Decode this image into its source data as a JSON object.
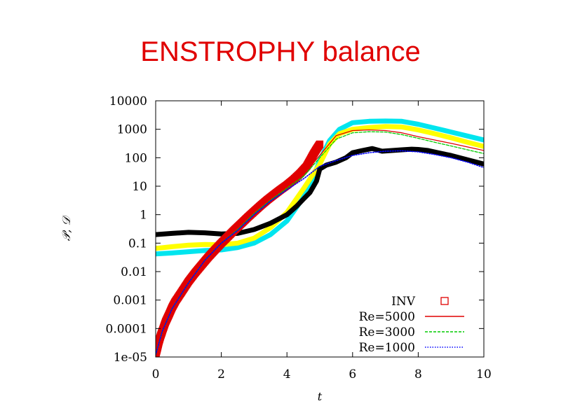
{
  "slide": {
    "title": "ENSTROPHY balance"
  },
  "chart_data": {
    "type": "line",
    "title": "",
    "xlabel": "t",
    "ylabel": "𝒫, 𝒟",
    "xlim": [
      0,
      10
    ],
    "ylim": [
      1e-05,
      10000
    ],
    "yscale": "log",
    "grid": false,
    "legend_position": "bottom-right",
    "x_ticks": [
      0,
      2,
      4,
      6,
      8,
      10
    ],
    "x_tick_labels": [
      "0",
      "2",
      "4",
      "6",
      "8",
      "10"
    ],
    "y_ticks": [
      1e-05,
      0.0001,
      0.001,
      0.01,
      0.1,
      1,
      10,
      100,
      1000,
      10000
    ],
    "y_tick_labels": [
      "1e-05",
      "0.0001",
      "0.001",
      "0.01",
      "0.1",
      "1",
      "10",
      "100",
      "1000",
      "10000"
    ],
    "series": [
      {
        "name": "INV",
        "style": "markers",
        "color": "#e00000",
        "x": [
          0.0,
          0.05,
          0.1,
          0.15,
          0.2,
          0.3,
          0.4,
          0.5,
          0.6,
          0.8,
          1.0,
          1.2,
          1.4,
          1.6,
          1.8,
          2.0,
          2.2,
          2.4,
          2.6,
          2.8,
          3.0,
          3.2,
          3.4,
          3.6,
          3.8,
          4.0,
          4.2,
          4.4,
          4.6,
          4.7,
          4.8,
          4.9,
          5.0
        ],
        "y": [
          1.2e-05,
          2e-05,
          3.5e-05,
          5.5e-05,
          8e-05,
          0.00017,
          0.0003,
          0.00055,
          0.0009,
          0.002,
          0.0045,
          0.009,
          0.017,
          0.032,
          0.057,
          0.1,
          0.17,
          0.29,
          0.48,
          0.8,
          1.3,
          2.1,
          3.3,
          5.0,
          7.5,
          11,
          17,
          28,
          50,
          80,
          130,
          200,
          300
        ]
      },
      {
        "name": "Re=5000",
        "style": "solid",
        "color": "#e00000",
        "x": [
          0.0,
          0.2,
          0.5,
          1.0,
          1.5,
          2.0,
          2.5,
          3.0,
          3.5,
          4.0,
          4.5,
          5.0,
          5.5,
          6.0,
          6.5,
          7.0,
          7.5,
          8.0,
          8.5,
          9.0,
          9.5,
          10.0
        ],
        "y": [
          1.2e-05,
          8e-05,
          0.0005,
          0.004,
          0.025,
          0.1,
          0.32,
          1.2,
          3.5,
          9,
          25,
          120,
          600,
          900,
          950,
          900,
          750,
          550,
          420,
          320,
          240,
          180
        ]
      },
      {
        "name": "Re=3000",
        "style": "dashed",
        "color": "#00cc00",
        "x": [
          0.0,
          0.2,
          0.5,
          1.0,
          1.5,
          2.0,
          2.5,
          3.0,
          3.5,
          4.0,
          4.5,
          5.0,
          5.5,
          6.0,
          6.5,
          7.0,
          7.5,
          8.0,
          8.5,
          9.0,
          9.5,
          10.0
        ],
        "y": [
          1.2e-05,
          8e-05,
          0.0005,
          0.004,
          0.025,
          0.1,
          0.3,
          1.1,
          3.2,
          8.5,
          22,
          100,
          450,
          750,
          820,
          800,
          650,
          480,
          350,
          260,
          190,
          140
        ]
      },
      {
        "name": "Re=1000",
        "style": "dotted",
        "color": "#0000ff",
        "x": [
          0.0,
          0.2,
          0.5,
          1.0,
          1.5,
          2.0,
          2.5,
          3.0,
          3.5,
          4.0,
          4.5,
          5.0,
          5.5,
          6.0,
          6.5,
          7.0,
          7.5,
          8.0,
          8.5,
          9.0,
          9.5,
          10.0
        ],
        "y": [
          1.2e-05,
          8e-05,
          0.0005,
          0.004,
          0.025,
          0.1,
          0.28,
          1.0,
          3.0,
          7.5,
          18,
          50,
          80,
          120,
          150,
          170,
          175,
          160,
          130,
          100,
          70,
          45
        ]
      },
      {
        "style": "thick",
        "color": "#00e5ee",
        "x": [
          0.0,
          0.5,
          1.0,
          1.5,
          2.0,
          2.5,
          3.0,
          3.5,
          4.0,
          4.5,
          4.8,
          5.0,
          5.3,
          5.6,
          6.0,
          6.5,
          7.0,
          7.5,
          8.0,
          8.5,
          9.0,
          9.5,
          10.0
        ],
        "y": [
          0.042,
          0.045,
          0.05,
          0.055,
          0.058,
          0.07,
          0.1,
          0.2,
          0.6,
          4,
          20,
          80,
          400,
          1000,
          1700,
          1900,
          1950,
          1900,
          1500,
          1100,
          800,
          580,
          420
        ]
      },
      {
        "style": "thick",
        "color": "#ffff00",
        "x": [
          0.0,
          0.5,
          1.0,
          1.5,
          2.0,
          2.5,
          3.0,
          3.5,
          4.0,
          4.5,
          5.0,
          5.3,
          5.6,
          6.0,
          6.5,
          7.0,
          7.5,
          8.0,
          8.5,
          9.0,
          9.5,
          10.0
        ],
        "y": [
          0.065,
          0.075,
          0.085,
          0.09,
          0.088,
          0.1,
          0.15,
          0.35,
          1.2,
          8,
          60,
          300,
          700,
          1000,
          1150,
          1250,
          1200,
          950,
          700,
          500,
          350,
          250
        ]
      },
      {
        "style": "thick",
        "color": "#000000",
        "x": [
          0.0,
          0.5,
          1.0,
          1.5,
          2.0,
          2.5,
          3.0,
          3.5,
          4.0,
          4.3,
          4.5,
          4.7,
          4.9,
          5.0,
          5.2,
          5.5,
          5.8,
          6.0,
          6.3,
          6.6,
          6.9,
          7.2,
          7.5,
          7.8,
          8.0,
          8.3,
          8.6,
          9.0,
          9.5,
          10.0
        ],
        "y": [
          0.2,
          0.22,
          0.24,
          0.23,
          0.21,
          0.22,
          0.3,
          0.5,
          1.0,
          2.0,
          3.5,
          6,
          15,
          40,
          55,
          70,
          100,
          150,
          180,
          210,
          170,
          180,
          190,
          200,
          195,
          180,
          150,
          120,
          85,
          60
        ]
      }
    ]
  }
}
